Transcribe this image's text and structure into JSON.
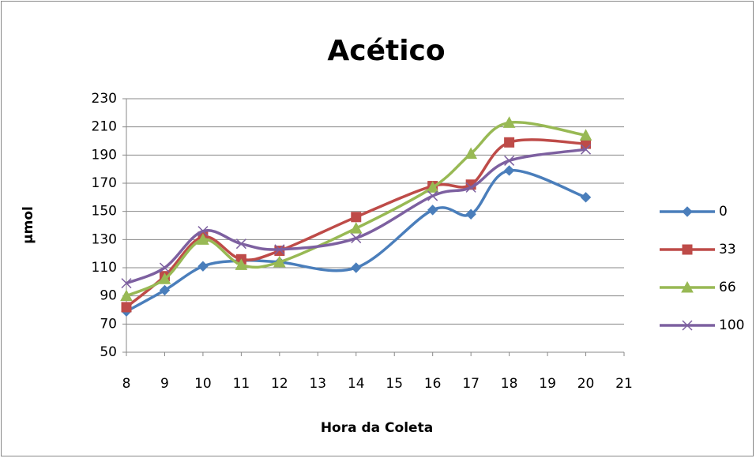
{
  "chart_data": {
    "type": "scatter-smooth",
    "title": "Acético",
    "x_label": "Hora da Coleta",
    "y_label": "µmol",
    "x": [
      8,
      9,
      10,
      11,
      12,
      14,
      16,
      17,
      18,
      20
    ],
    "series": [
      {
        "name": "0",
        "color": "#4a7ebb",
        "marker": "diamond",
        "values": [
          79,
          94,
          111,
          115,
          114,
          110,
          151,
          148,
          179,
          160
        ]
      },
      {
        "name": "33",
        "color": "#be4b48",
        "marker": "square",
        "values": [
          82,
          104,
          132,
          116,
          122,
          146,
          168,
          169,
          199,
          198
        ]
      },
      {
        "name": "66",
        "color": "#98b954",
        "marker": "triangle",
        "values": [
          90,
          102,
          130,
          112,
          114,
          138,
          167,
          191,
          213,
          204
        ]
      },
      {
        "name": "100",
        "color": "#7d60a0",
        "marker": "x",
        "values": [
          99,
          110,
          136,
          127,
          123,
          131,
          161,
          167,
          186,
          194
        ]
      }
    ],
    "xlim": [
      8,
      21
    ],
    "xticks": [
      8,
      9,
      10,
      11,
      12,
      13,
      14,
      15,
      16,
      17,
      18,
      19,
      20,
      21
    ],
    "ylim": [
      50,
      230
    ],
    "yticks": [
      50,
      70,
      90,
      110,
      130,
      150,
      170,
      190,
      210,
      230
    ],
    "grid": true,
    "legend": "right"
  }
}
